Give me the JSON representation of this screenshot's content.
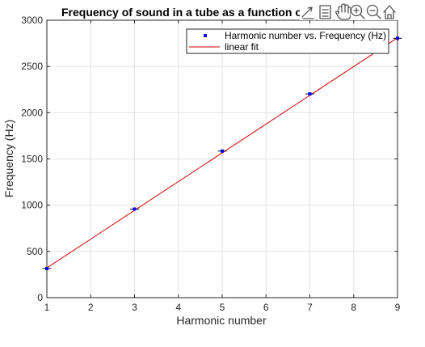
{
  "chart_data": {
    "type": "scatter",
    "title": "Frequency of sound in a tube as a function o",
    "xlabel": "Harmonic number",
    "ylabel": "Frequency (Hz)",
    "xlim": [
      1,
      9
    ],
    "ylim": [
      0,
      3000
    ],
    "x_ticks": [
      1,
      2,
      3,
      4,
      5,
      6,
      7,
      8,
      9
    ],
    "y_ticks": [
      0,
      500,
      1000,
      1500,
      2000,
      2500,
      3000
    ],
    "grid": true,
    "legend_position": "top-right",
    "series": [
      {
        "name": "Harmonic number vs. Frequency (Hz)",
        "kind": "points",
        "color": "#0000ff",
        "error_color": "#000000",
        "x": [
          1,
          3,
          5,
          7,
          9
        ],
        "y": [
          315,
          958,
          1585,
          2203,
          2805
        ],
        "xerr": 0.1,
        "yerr": 10
      },
      {
        "name": "linear fit",
        "kind": "line",
        "color": "#d40000",
        "x": [
          1,
          9
        ],
        "y": [
          322,
          2810
        ]
      }
    ]
  },
  "toolbar": {
    "icons": [
      "text-arrow-icon",
      "insert-legend-icon",
      "pan-hand-icon",
      "zoom-in-icon",
      "zoom-out-icon",
      "home-icon"
    ]
  }
}
